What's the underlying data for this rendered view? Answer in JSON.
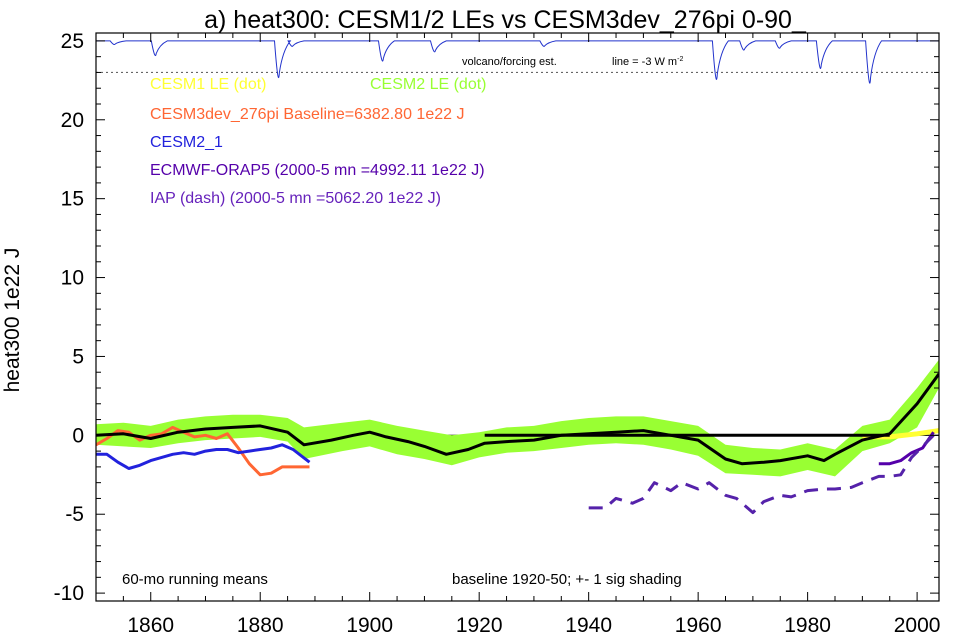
{
  "chart_data": {
    "type": "line",
    "title": "a) heat300: CESM1/2 LEs vs CESM3dev_276pi 0-90_",
    "ylabel": "heat300 1e22 J",
    "xlabel": "",
    "xlim": [
      1850,
      2004
    ],
    "ylim": [
      -10.5,
      25.5
    ],
    "x_ticks": [
      1860,
      1880,
      1900,
      1920,
      1940,
      1960,
      1980,
      2000
    ],
    "y_ticks": [
      -10,
      -5,
      0,
      5,
      10,
      15,
      20,
      25
    ],
    "grid": false,
    "reference_lines": [
      {
        "y": 0,
        "style": "solid",
        "color": "#000000"
      },
      {
        "y": 23,
        "style": "dotted",
        "color": "#666666"
      }
    ],
    "legend": [
      {
        "label": "CESM1 LE (dot)",
        "color": "#ffff33"
      },
      {
        "label": "CESM2 LE (dot)",
        "color": "#99ff33"
      },
      {
        "label": "CESM3dev_276pi Baseline=6382.80 1e22 J",
        "color": "#ff6633"
      },
      {
        "label": "CESM2_1",
        "color": "#2222dd"
      },
      {
        "label": "ECMWF-ORAP5 (2000-5 mn =4992.11 1e22 J)",
        "color": "#5500aa"
      },
      {
        "label": "IAP (dash) (2000-5 mn =5062.20 1e22 J)",
        "color": "#6622bb"
      }
    ],
    "annotations": {
      "volcano": "volcano/forcing est.",
      "line_note": "line = -3 W m",
      "line_note_sup": "-2",
      "running_means": "60-mo running means",
      "baseline_note": "baseline 1920-50; +- 1 sig shading"
    },
    "series": [
      {
        "name": "CESM2 LE (dot)",
        "kind": "band",
        "color": "#99ff33",
        "x": [
          1850,
          1855,
          1860,
          1865,
          1870,
          1875,
          1880,
          1885,
          1888,
          1895,
          1900,
          1905,
          1910,
          1915,
          1920,
          1925,
          1930,
          1935,
          1940,
          1945,
          1950,
          1955,
          1960,
          1965,
          1970,
          1975,
          1980,
          1985,
          1990,
          1995,
          2000,
          2004
        ],
        "lower": [
          -0.6,
          -0.7,
          -0.8,
          -0.5,
          -0.3,
          -0.2,
          -0.1,
          -0.4,
          -1.5,
          -1.0,
          -0.7,
          -1.2,
          -1.5,
          -1.9,
          -1.4,
          -1.1,
          -1.0,
          -0.8,
          -0.6,
          -0.5,
          -0.6,
          -0.9,
          -1.3,
          -2.4,
          -2.5,
          -2.6,
          -2.2,
          -2.6,
          -1.0,
          -0.5,
          0.5,
          3.0
        ],
        "upper": [
          0.7,
          0.8,
          0.6,
          1.0,
          1.2,
          1.3,
          1.3,
          1.1,
          0.5,
          0.8,
          1.0,
          0.6,
          0.3,
          0.0,
          0.2,
          0.5,
          0.6,
          0.9,
          1.1,
          1.2,
          1.2,
          0.9,
          0.6,
          -0.6,
          -0.8,
          -0.9,
          -0.5,
          -0.9,
          0.6,
          1.0,
          3.0,
          4.8
        ]
      },
      {
        "name": "CESM1 LE (dot)",
        "kind": "line",
        "color": "#ffff33",
        "x": [
          1990,
          1995,
          2000,
          2004
        ],
        "y": [
          -0.1,
          -0.1,
          0.1,
          0.3
        ]
      },
      {
        "name": "CESM3dev_276pi",
        "kind": "line",
        "color": "#ff6633",
        "x": [
          1850,
          1852,
          1854,
          1856,
          1858,
          1860,
          1862,
          1864,
          1866,
          1868,
          1870,
          1872,
          1874,
          1876,
          1878,
          1880,
          1882,
          1884,
          1886,
          1889
        ],
        "y": [
          -0.6,
          -0.2,
          0.3,
          0.2,
          -0.3,
          0.0,
          0.1,
          0.5,
          0.2,
          -0.1,
          0.0,
          -0.2,
          0.1,
          -0.8,
          -1.8,
          -2.5,
          -2.4,
          -2.0,
          -2.0,
          -2.0
        ]
      },
      {
        "name": "CESM2_1",
        "kind": "line",
        "color": "#2222dd",
        "x": [
          1850,
          1852,
          1854,
          1856,
          1858,
          1860,
          1862,
          1864,
          1866,
          1868,
          1870,
          1872,
          1874,
          1876,
          1878,
          1880,
          1882,
          1884,
          1886,
          1889
        ],
        "y": [
          -1.2,
          -1.2,
          -1.7,
          -2.1,
          -1.9,
          -1.6,
          -1.4,
          -1.2,
          -1.1,
          -1.2,
          -1.0,
          -0.9,
          -0.9,
          -1.1,
          -1.0,
          -0.9,
          -0.8,
          -0.6,
          -0.9,
          -1.7
        ]
      },
      {
        "name": "ECMWF-ORAP5",
        "kind": "line",
        "color": "#5500aa",
        "x": [
          1993,
          1995,
          1997,
          1999,
          2001,
          2003
        ],
        "y": [
          -1.8,
          -1.8,
          -1.6,
          -1.1,
          -0.8,
          0.2
        ]
      },
      {
        "name": "IAP (dash)",
        "kind": "line",
        "dash": true,
        "color": "#5522aa",
        "x": [
          1940,
          1943,
          1945,
          1948,
          1950,
          1952,
          1955,
          1957,
          1960,
          1962,
          1965,
          1967,
          1970,
          1972,
          1975,
          1977,
          1980,
          1983,
          1985,
          1988,
          1990,
          1993,
          1995,
          1997,
          1999,
          2001,
          2003
        ],
        "y": [
          -4.6,
          -4.6,
          -4.0,
          -4.3,
          -4.0,
          -3.0,
          -3.5,
          -3.0,
          -3.4,
          -3.0,
          -3.8,
          -4.0,
          -4.9,
          -4.2,
          -3.8,
          -3.9,
          -3.5,
          -3.4,
          -3.4,
          -3.3,
          -3.0,
          -2.6,
          -2.6,
          -2.5,
          -1.4,
          -0.7,
          0.0
        ]
      },
      {
        "name": "CESM2 LE mean",
        "kind": "line",
        "color": "#000000",
        "x": [
          1850,
          1855,
          1860,
          1865,
          1870,
          1875,
          1880,
          1885,
          1888,
          1893,
          1897,
          1900,
          1903,
          1907,
          1910,
          1914,
          1918,
          1921,
          1925,
          1930,
          1935,
          1940,
          1945,
          1950,
          1955,
          1960,
          1965,
          1968,
          1972,
          1975,
          1980,
          1983,
          1985,
          1990,
          1995,
          2000,
          2004
        ],
        "y": [
          0.0,
          0.1,
          -0.2,
          0.2,
          0.4,
          0.5,
          0.6,
          0.2,
          -0.6,
          -0.3,
          0.0,
          0.2,
          -0.1,
          -0.4,
          -0.7,
          -1.2,
          -0.9,
          -0.5,
          -0.4,
          -0.3,
          0.0,
          0.1,
          0.2,
          0.3,
          0.0,
          -0.3,
          -1.5,
          -1.8,
          -1.7,
          -1.6,
          -1.3,
          -1.6,
          -1.2,
          -0.3,
          0.1,
          2.0,
          3.9
        ]
      },
      {
        "name": "baseline",
        "kind": "line",
        "color": "#000000",
        "x": [
          1921,
          1995
        ],
        "y": [
          0.0,
          0.0
        ]
      },
      {
        "name": "volcano/forcing est.",
        "kind": "forcing",
        "color": "#2233cc",
        "baseline": 25,
        "events": [
          {
            "x": 1853.5,
            "depth": 0.2
          },
          {
            "x": 1861,
            "depth": 0.8
          },
          {
            "x": 1883.5,
            "depth": 2.0
          },
          {
            "x": 1886,
            "depth": 0.3
          },
          {
            "x": 1902.5,
            "depth": 1.1
          },
          {
            "x": 1912,
            "depth": 0.6
          },
          {
            "x": 1932,
            "depth": 0.3
          },
          {
            "x": 1963.5,
            "depth": 2.1
          },
          {
            "x": 1968.5,
            "depth": 0.5
          },
          {
            "x": 1975,
            "depth": 0.4
          },
          {
            "x": 1982.5,
            "depth": 1.5
          },
          {
            "x": 1991.5,
            "depth": 2.3
          }
        ]
      }
    ]
  }
}
